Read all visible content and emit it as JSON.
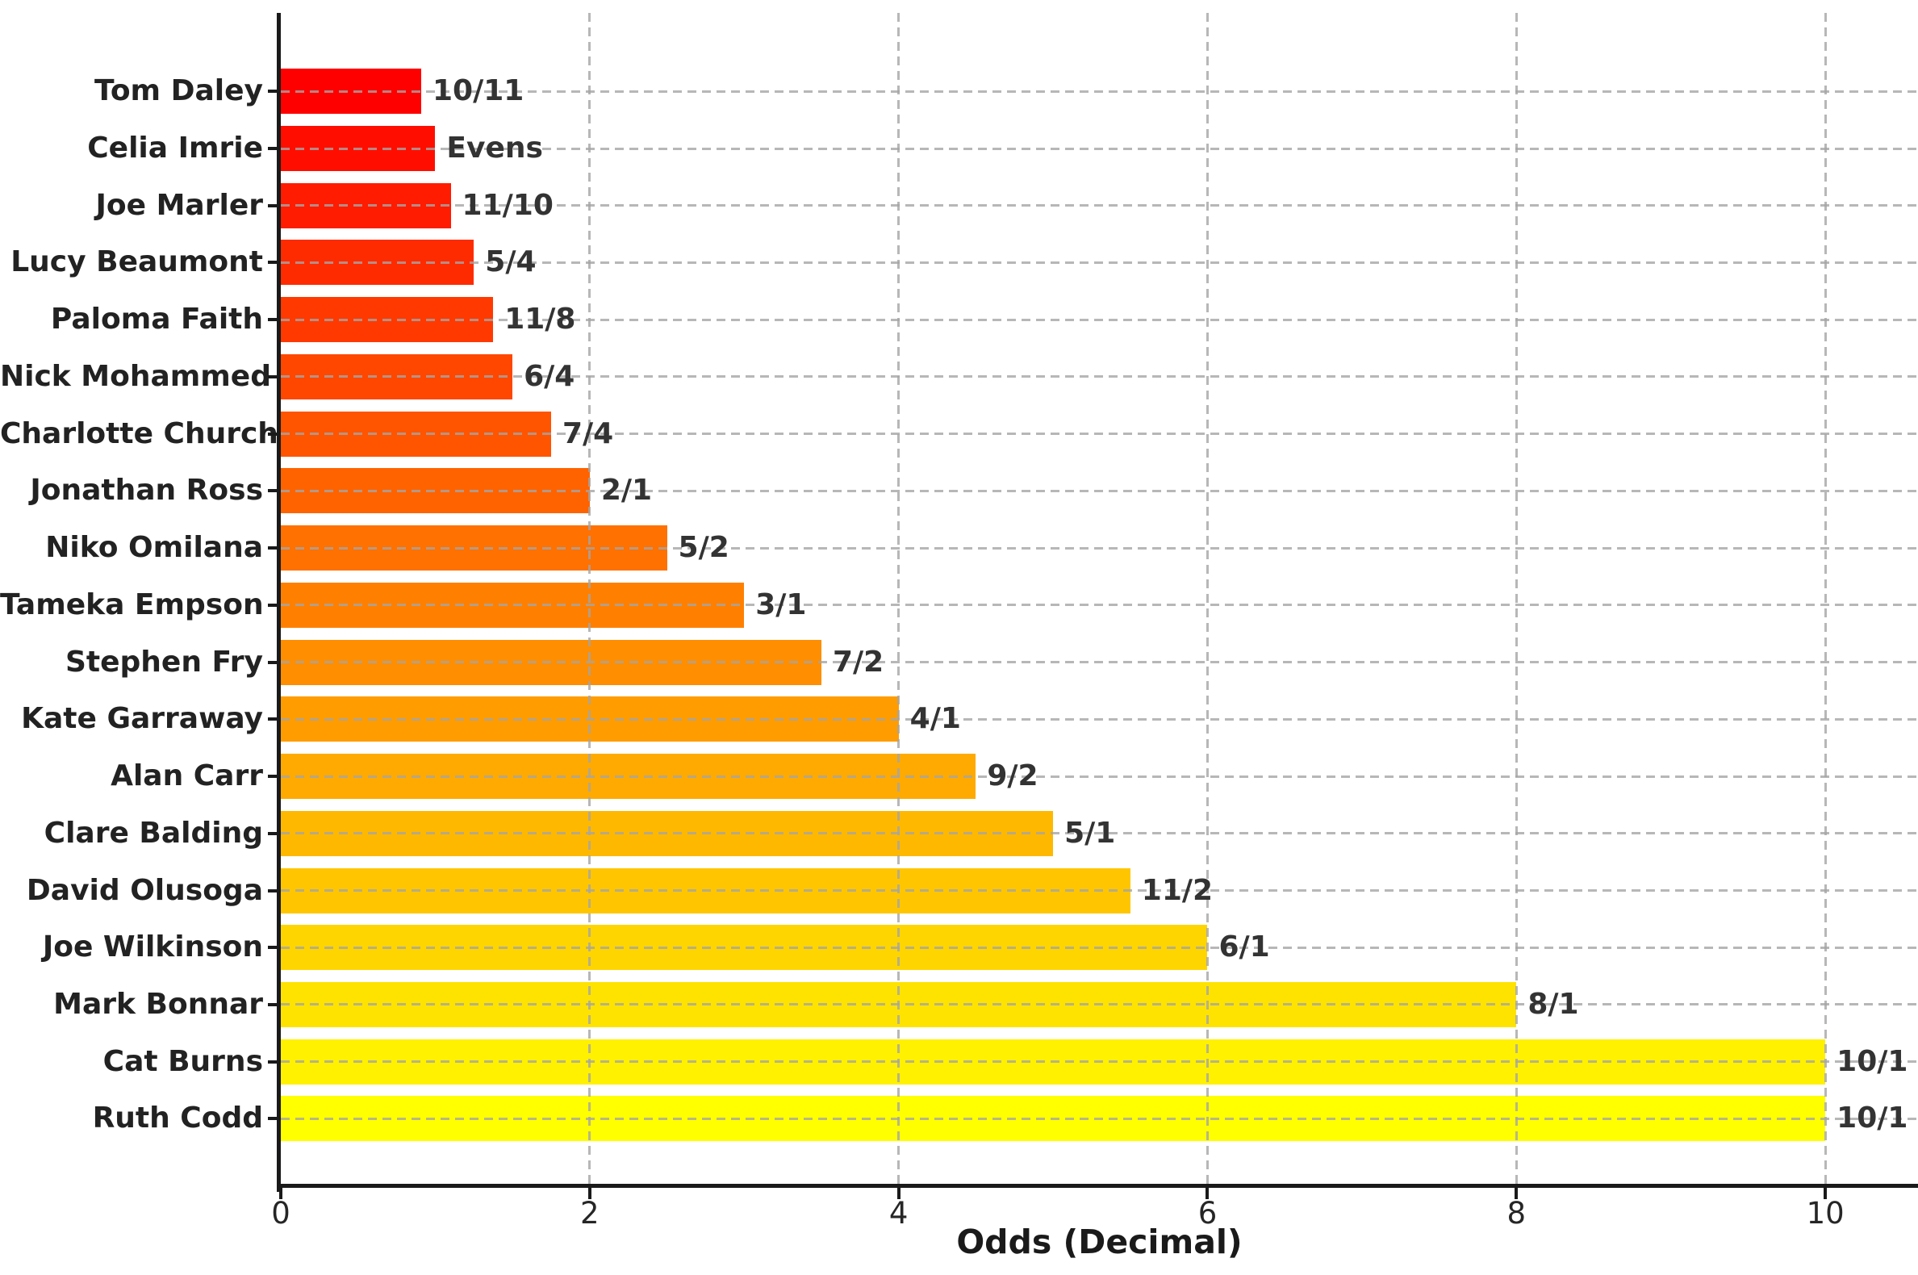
{
  "chart_data": {
    "type": "bar",
    "orientation": "horizontal",
    "title": "",
    "xlabel": "Odds (Decimal)",
    "ylabel": "",
    "xlim": [
      0,
      10.6
    ],
    "xticks": [
      0,
      2,
      4,
      6,
      8,
      10
    ],
    "grid": "dashed gridlines on both axes, drawn above bars",
    "legend": "none",
    "categories": [
      "Tom Daley",
      "Celia Imrie",
      "Joe Marler",
      "Lucy Beaumont",
      "Paloma Faith",
      "Nick Mohammed",
      "Charlotte Church",
      "Jonathan Ross",
      "Niko Omilana",
      "Tameka Empson",
      "Stephen Fry",
      "Kate Garraway",
      "Alan Carr",
      "Clare Balding",
      "David Olusoga",
      "Joe Wilkinson",
      "Mark Bonnar",
      "Cat Burns",
      "Ruth Codd"
    ],
    "values": [
      0.9091,
      1.0,
      1.1,
      1.25,
      1.375,
      1.5,
      1.75,
      2.0,
      2.5,
      3.0,
      3.5,
      4.0,
      4.5,
      5.0,
      5.5,
      6.0,
      8.0,
      10.0,
      10.0
    ],
    "bar_labels": [
      "10/11",
      "Evens",
      "11/10",
      "5/4",
      "11/8",
      "6/4",
      "7/4",
      "2/1",
      "5/2",
      "3/1",
      "7/2",
      "4/1",
      "9/2",
      "5/1",
      "11/2",
      "6/1",
      "8/1",
      "10/1",
      "10/1"
    ],
    "bar_colors": [
      "#ff0000",
      "#ff0e00",
      "#ff1c00",
      "#ff2b00",
      "#ff3900",
      "#ff4700",
      "#ff5500",
      "#ff6300",
      "#ff7100",
      "#ff8000",
      "#ff8e00",
      "#ff9c00",
      "#ffaa00",
      "#ffb800",
      "#ffc600",
      "#ffd500",
      "#ffe300",
      "#fff100",
      "#ffff00"
    ],
    "colormap": "autumn red-to-yellow",
    "colors": {
      "background": "#ffffff",
      "spine": "#1a1a1a",
      "grid": "#a5a5a5",
      "category_text": "#222222",
      "value_text": "#333333",
      "tick_text": "#262626"
    }
  }
}
